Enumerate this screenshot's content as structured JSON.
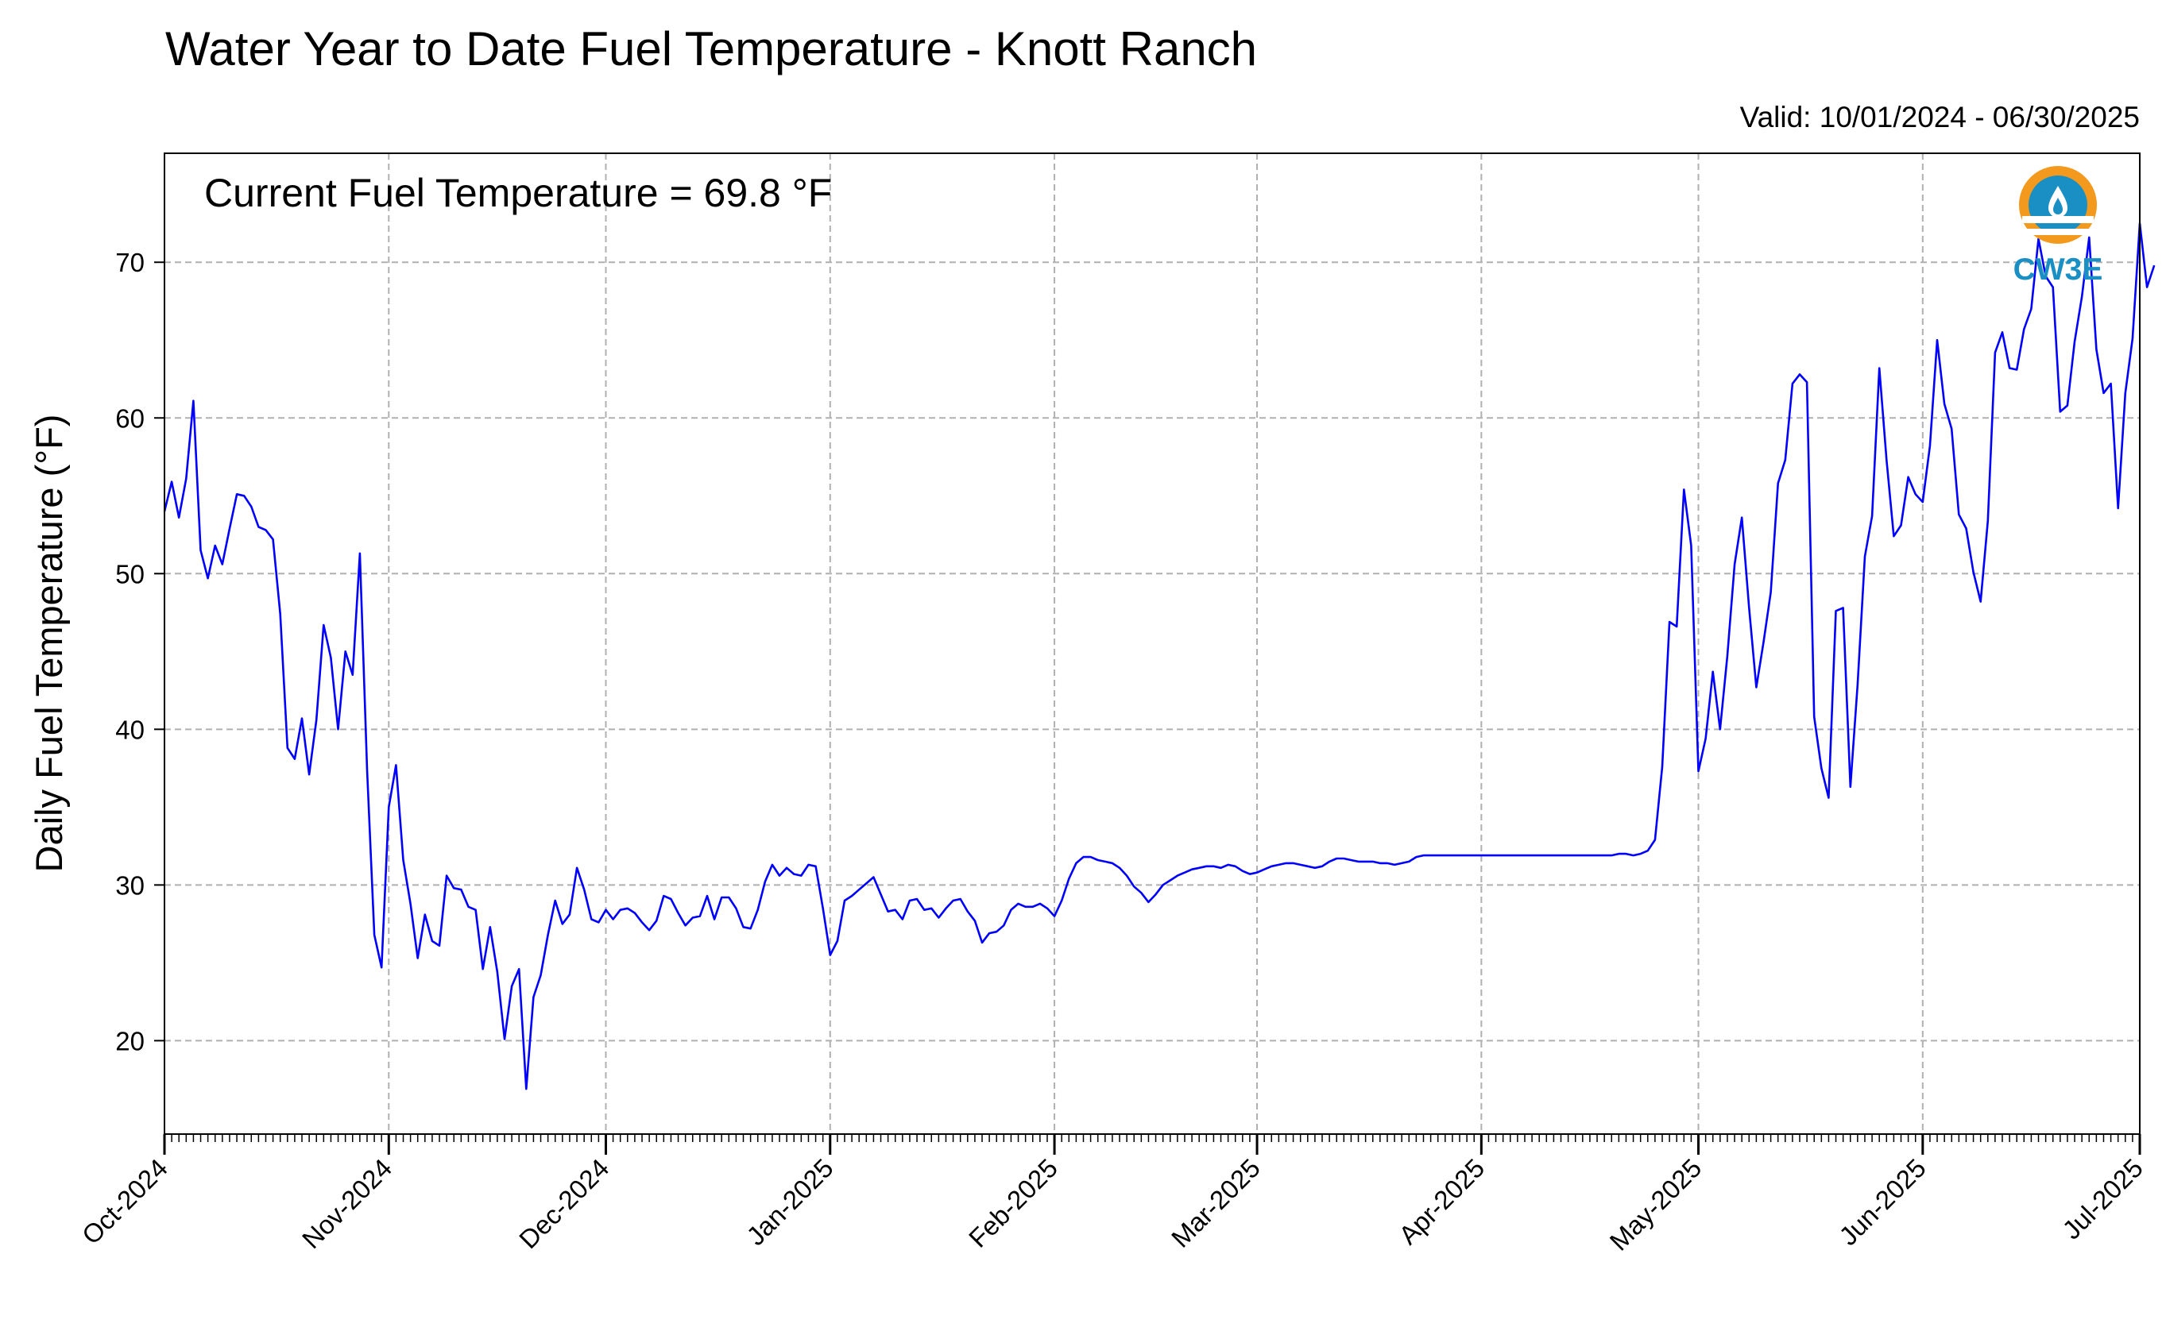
{
  "title": "Water Year to Date Fuel Temperature - Knott Ranch",
  "valid": "Valid: 10/01/2024 - 06/30/2025",
  "annotation": "Current Fuel Temperature = 69.8  °F",
  "logo": {
    "text": "CW3E",
    "icon": "water-drop-sun-logo",
    "colors": {
      "ring": "#f39a1e",
      "water": "#1a8fc4"
    }
  },
  "chart_data": {
    "type": "line",
    "title": "Water Year to Date Fuel Temperature - Knott Ranch",
    "ylabel": "Daily Fuel Temperature (°F)",
    "xlabel": "",
    "xlim": [
      "2024-10-01",
      "2025-07-01"
    ],
    "ylim": [
      14,
      77
    ],
    "yticks": [
      20,
      30,
      40,
      50,
      60,
      70
    ],
    "xticks": [
      {
        "date": "2024-10-01",
        "label": "Oct-2024"
      },
      {
        "date": "2024-11-01",
        "label": "Nov-2024"
      },
      {
        "date": "2024-12-01",
        "label": "Dec-2024"
      },
      {
        "date": "2025-01-01",
        "label": "Jan-2025"
      },
      {
        "date": "2025-02-01",
        "label": "Feb-2025"
      },
      {
        "date": "2025-03-01",
        "label": "Mar-2025"
      },
      {
        "date": "2025-04-01",
        "label": "Apr-2025"
      },
      {
        "date": "2025-05-01",
        "label": "May-2025"
      },
      {
        "date": "2025-06-01",
        "label": "Jun-2025"
      },
      {
        "date": "2025-07-01",
        "label": "Jul-2025"
      }
    ],
    "grid": true,
    "line_color": "#0000ff",
    "series": [
      {
        "start_date": "2024-10-01",
        "values": [
          54.0,
          55.9,
          53.6,
          56.1,
          61.1,
          51.5,
          49.7,
          51.8,
          50.6,
          52.9,
          55.1,
          55.0,
          54.3,
          53.0,
          52.8,
          52.2,
          47.4,
          38.8,
          38.1,
          40.7,
          37.1,
          40.6,
          46.7,
          44.6,
          40.0,
          45.0,
          43.5,
          51.3,
          37.4,
          26.8,
          24.7,
          35.0,
          37.7,
          31.6,
          28.8,
          25.3,
          28.1,
          26.4,
          26.1,
          30.6,
          29.8,
          29.7,
          28.6,
          28.4,
          24.6,
          27.3,
          24.4,
          20.1,
          23.5,
          24.6,
          16.9,
          22.8,
          24.2,
          26.8,
          29.0,
          27.5,
          28.1,
          31.1,
          29.7,
          27.8,
          27.6,
          28.4,
          27.8,
          28.4,
          28.5,
          28.2,
          27.6,
          27.1,
          27.7,
          29.3,
          29.1,
          28.2,
          27.4,
          27.9,
          28.0,
          29.3,
          27.8,
          29.2,
          29.2,
          28.5,
          27.3,
          27.2,
          28.4,
          30.2,
          31.3,
          30.6,
          31.1,
          30.7,
          30.6,
          31.3,
          31.2,
          28.5,
          25.5,
          26.4,
          29.0,
          29.3,
          29.7,
          30.1,
          30.5,
          29.4,
          28.3,
          28.4,
          27.8,
          29.0,
          29.1,
          28.4,
          28.5,
          27.9,
          28.5,
          29.0,
          29.1,
          28.3,
          27.7,
          26.3,
          26.9,
          27.0,
          27.4,
          28.4,
          28.8,
          28.6,
          28.6,
          28.8,
          28.5,
          28.0,
          29.0,
          30.4,
          31.4,
          31.8,
          31.8,
          31.6,
          31.5,
          31.4,
          31.1,
          30.6,
          29.9,
          29.5,
          28.9,
          29.4,
          30.0,
          30.3,
          30.6,
          30.8,
          31.0,
          31.1,
          31.2,
          31.2,
          31.1,
          31.3,
          31.2,
          30.9,
          30.7,
          30.8,
          31.0,
          31.2,
          31.3,
          31.4,
          31.4,
          31.3,
          31.2,
          31.1,
          31.2,
          31.5,
          31.7,
          31.7,
          31.6,
          31.5,
          31.5,
          31.5,
          31.4,
          31.4,
          31.3,
          31.4,
          31.5,
          31.8,
          31.9,
          31.9,
          31.9,
          31.9,
          31.9,
          31.9,
          31.9,
          31.9,
          31.9,
          31.9,
          31.9,
          31.9,
          31.9,
          31.9,
          31.9,
          31.9,
          31.9,
          31.9,
          31.9,
          31.9,
          31.9,
          31.9,
          31.9,
          31.9,
          31.9,
          31.9,
          31.9,
          32.0,
          32.0,
          31.9,
          32.0,
          32.2,
          32.9,
          37.6,
          46.9,
          46.6,
          55.4,
          51.8,
          37.3,
          39.4,
          43.7,
          40.0,
          44.7,
          50.6,
          53.6,
          47.8,
          42.7,
          45.6,
          48.8,
          55.8,
          57.3,
          62.2,
          62.8,
          62.3,
          40.8,
          37.5,
          35.6,
          47.6,
          47.8,
          36.3,
          42.9,
          51.1,
          53.7,
          63.2,
          57.3,
          52.4,
          53.1,
          56.2,
          55.1,
          54.6,
          58.2,
          65.0,
          60.9,
          59.3,
          53.8,
          52.9,
          50.1,
          48.2,
          53.4,
          64.2,
          65.5,
          63.2,
          63.1,
          65.7,
          67.0,
          71.5,
          69.1,
          68.4,
          60.4,
          60.8,
          64.9,
          67.8,
          71.6,
          64.4,
          61.6,
          62.2,
          54.2,
          61.6,
          65.1,
          72.5,
          68.4,
          69.8
        ]
      }
    ]
  }
}
